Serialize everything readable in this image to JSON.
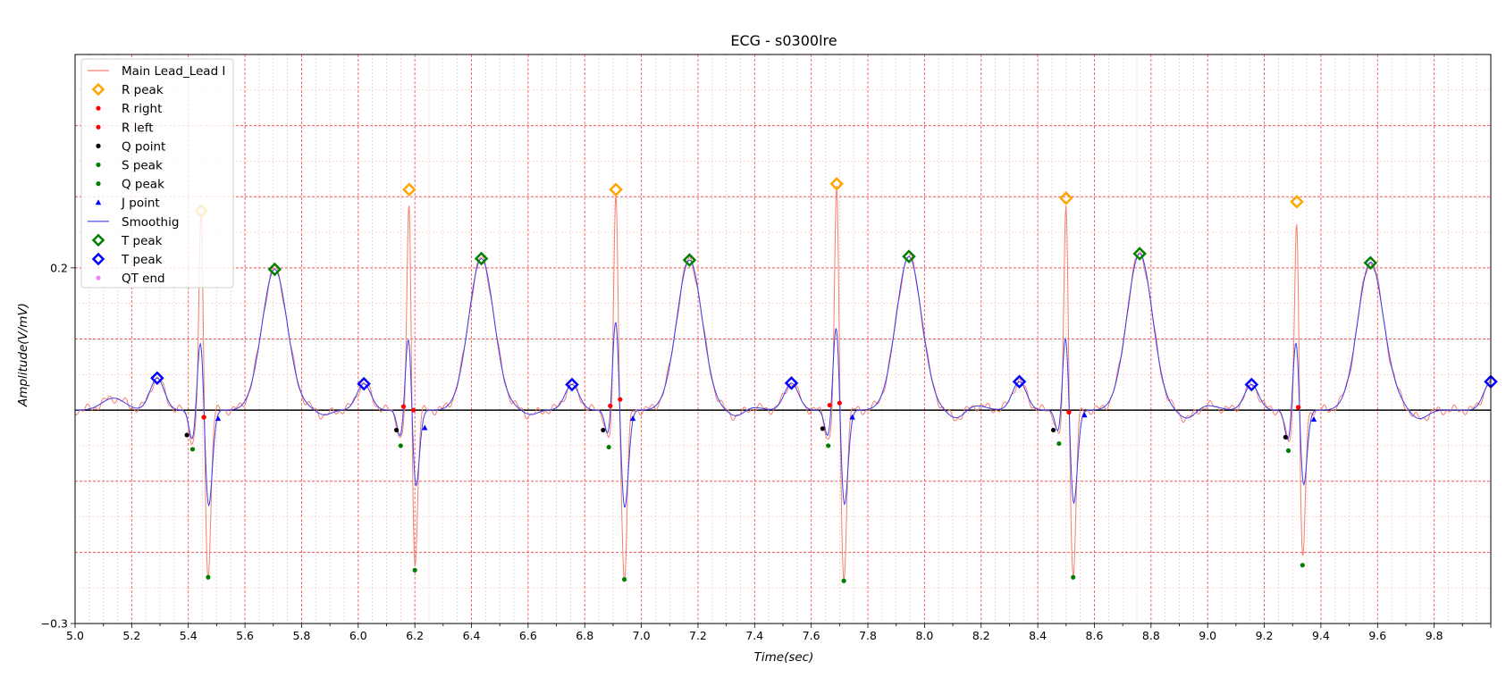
{
  "chart_data": {
    "type": "line",
    "title": "ECG - s0300lre",
    "xlabel": "Time(sec)",
    "ylabel": "Amplitude(V/mV)",
    "xlim": [
      5.0,
      10.0
    ],
    "ylim": [
      -0.3,
      0.5
    ],
    "xticks": [
      "5.0",
      "5.2",
      "5.4",
      "5.6",
      "5.8",
      "6.0",
      "6.2",
      "6.4",
      "6.6",
      "6.8",
      "7.0",
      "7.2",
      "7.4",
      "7.6",
      "7.8",
      "8.0",
      "8.2",
      "8.4",
      "8.6",
      "8.8",
      "9.0",
      "9.2",
      "9.4",
      "9.6",
      "9.8"
    ],
    "yticks": [
      "0.2",
      "−0.3"
    ],
    "grid": true,
    "legend_position": "upper-left",
    "baseline": 0.0,
    "colors": {
      "main": "#f28070",
      "smooth": "#3d3df0",
      "r_peak": "#ffa500",
      "r_right": "#ff0000",
      "r_left": "#ff0000",
      "q_point": "#000000",
      "s_peak": "#008000",
      "q_peak": "#008000",
      "j_point": "#0000ff",
      "t_peak_green": "#008000",
      "t_peak_blue": "#0000ff",
      "qt_end": "#ee82ee"
    },
    "legend": [
      {
        "label": "Main Lead_Lead I",
        "marker": "line",
        "color": "#f28070"
      },
      {
        "label": "R peak",
        "marker": "diamond",
        "color": "#ffa500"
      },
      {
        "label": "R right",
        "marker": "dot",
        "color": "#ff0000"
      },
      {
        "label": "R left",
        "marker": "dot",
        "color": "#ff0000"
      },
      {
        "label": "Q point",
        "marker": "dot",
        "color": "#000000"
      },
      {
        "label": "S peak",
        "marker": "dot",
        "color": "#008000"
      },
      {
        "label": "Q peak",
        "marker": "dot",
        "color": "#008000"
      },
      {
        "label": "J point",
        "marker": "triangle",
        "color": "#0000ff"
      },
      {
        "label": "Smoothig",
        "marker": "line",
        "color": "#3d3df0"
      },
      {
        "label": "T peak",
        "marker": "diamond",
        "color": "#008000"
      },
      {
        "label": "T peak",
        "marker": "diamond",
        "color": "#0000ff"
      },
      {
        "label": "QT end",
        "marker": "dot",
        "color": "#ee82ee"
      }
    ],
    "beats": [
      {
        "pwave": [
          5.29,
          0.045
        ],
        "r": [
          5.445,
          0.28
        ],
        "r_smooth": 0.12,
        "r_left": [
          5.455,
          -0.01
        ],
        "r_right": [
          5.455,
          -0.01
        ],
        "q_point": [
          5.395,
          -0.035
        ],
        "q_peak": [
          5.415,
          -0.055
        ],
        "s_peak": [
          5.47,
          -0.235
        ],
        "s_smooth": -0.145,
        "j_point": [
          5.505,
          -0.012
        ],
        "t_peak": [
          5.705,
          0.198
        ],
        "t_marker": [
          5.705,
          0.198
        ]
      },
      {
        "pwave": [
          6.02,
          0.037
        ],
        "r": [
          6.18,
          0.31
        ],
        "r_smooth": 0.14,
        "r_left": [
          6.16,
          0.005
        ],
        "r_right": [
          6.195,
          0.0
        ],
        "q_point": [
          6.135,
          -0.028
        ],
        "q_peak": [
          6.15,
          -0.05
        ],
        "s_peak": [
          6.2,
          -0.225
        ],
        "s_smooth": -0.13,
        "j_point": [
          6.235,
          -0.025
        ],
        "t_peak": [
          6.435,
          0.213
        ],
        "t_marker": [
          6.435,
          0.213
        ]
      },
      {
        "pwave": [
          6.755,
          0.036
        ],
        "r": [
          6.91,
          0.31
        ],
        "r_smooth": 0.142,
        "r_left": [
          6.89,
          0.006
        ],
        "r_right": [
          6.925,
          0.015
        ],
        "q_point": [
          6.865,
          -0.028
        ],
        "q_peak": [
          6.885,
          -0.052
        ],
        "s_peak": [
          6.94,
          -0.238
        ],
        "s_smooth": -0.142,
        "j_point": [
          6.97,
          -0.012
        ],
        "t_peak": [
          7.17,
          0.211
        ],
        "t_marker": [
          7.17,
          0.211
        ]
      },
      {
        "pwave": [
          7.53,
          0.038
        ],
        "r": [
          7.69,
          0.318
        ],
        "r_smooth": 0.142,
        "r_left": [
          7.665,
          0.007
        ],
        "r_right": [
          7.7,
          0.01
        ],
        "q_point": [
          7.64,
          -0.026
        ],
        "q_peak": [
          7.66,
          -0.05
        ],
        "s_peak": [
          7.715,
          -0.24
        ],
        "s_smooth": -0.145,
        "j_point": [
          7.745,
          -0.01
        ],
        "t_peak": [
          7.945,
          0.216
        ],
        "t_marker": [
          7.945,
          0.216
        ]
      },
      {
        "pwave": [
          8.335,
          0.04
        ],
        "r": [
          8.5,
          0.298
        ],
        "r_smooth": 0.13,
        "r_left": [
          8.51,
          -0.003
        ],
        "r_right": [
          8.51,
          -0.003
        ],
        "q_point": [
          8.455,
          -0.028
        ],
        "q_peak": [
          8.475,
          -0.047
        ],
        "s_peak": [
          8.525,
          -0.235
        ],
        "s_smooth": -0.142,
        "j_point": [
          8.565,
          -0.007
        ],
        "t_peak": [
          8.76,
          0.22
        ],
        "t_marker": [
          8.76,
          0.22
        ]
      },
      {
        "pwave": [
          9.155,
          0.036
        ],
        "r": [
          9.315,
          0.293
        ],
        "r_smooth": 0.135,
        "r_left": [
          9.32,
          0.004
        ],
        "r_right": [
          9.32,
          0.004
        ],
        "q_point": [
          9.275,
          -0.038
        ],
        "q_peak": [
          9.285,
          -0.057
        ],
        "s_peak": [
          9.335,
          -0.218
        ],
        "s_smooth": -0.128,
        "j_point": [
          9.375,
          -0.013
        ],
        "t_peak": [
          9.575,
          0.207
        ],
        "t_marker": [
          9.575,
          0.207
        ]
      }
    ],
    "tail_pwave": [
      10.0,
      0.04
    ]
  }
}
